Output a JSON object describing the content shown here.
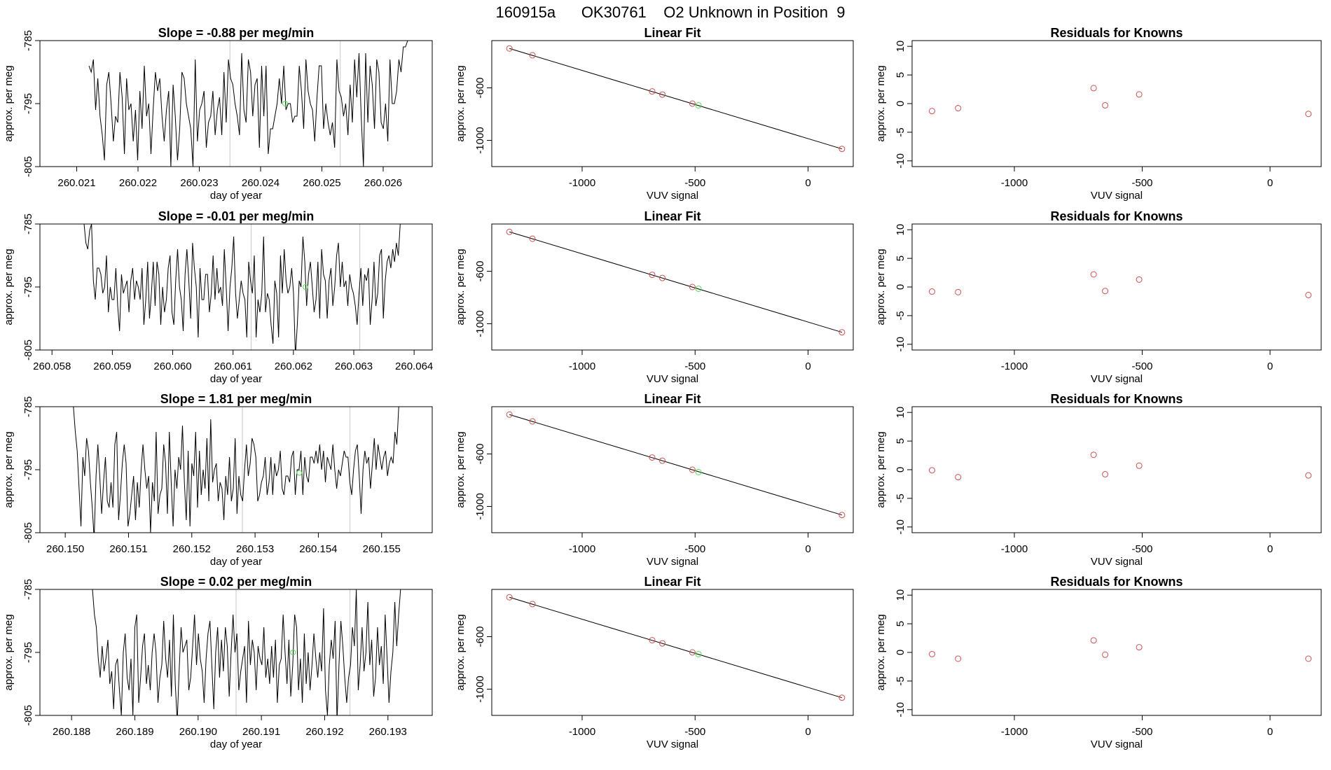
{
  "page_title": "160915a      OK30761    O2 Unknown in Position  9",
  "colors": {
    "line": "#000000",
    "known_point": "#cd4f4f",
    "unknown_point": "#55dd55",
    "vline": "#c8c8c8",
    "axis": "#000000"
  },
  "chart_data": [
    {
      "type": "line",
      "row": 0,
      "title": "Slope =  -0.88  per meg/min",
      "xlabel": "day of year",
      "ylabel": "approx. per meg",
      "xlim": [
        260.0204,
        260.0268
      ],
      "ylim": [
        -805,
        -785
      ],
      "xticks": [
        "260.021",
        "260.022",
        "260.023",
        "260.024",
        "260.025",
        "260.026"
      ],
      "yticks": [
        "-805",
        "-795",
        "-785"
      ],
      "start": 260.0212,
      "end": 260.0264,
      "vlines": [
        260.0235,
        260.0253
      ],
      "unknown_point": {
        "x": 260.0244,
        "y": -795
      },
      "series": [
        -789,
        -790,
        -788,
        -796,
        -791,
        -797,
        -800,
        -804,
        -792,
        -790,
        -795,
        -801,
        -797,
        -798,
        -790,
        -794,
        -803,
        -791,
        -796,
        -795,
        -801,
        -796,
        -804,
        -793,
        -799,
        -789,
        -797,
        -795,
        -803,
        -796,
        -790,
        -793,
        -791,
        -797,
        -801,
        -796,
        -793,
        -805,
        -792,
        -797,
        -804,
        -799,
        -790,
        -791,
        -795,
        -797,
        -799,
        -805,
        -788,
        -801,
        -796,
        -795,
        -793,
        -802,
        -798,
        -797,
        -793,
        -800,
        -796,
        -794,
        -800,
        -790,
        -798,
        -788,
        -791,
        -792,
        -795,
        -797,
        -800,
        -787,
        -796,
        -798,
        -788,
        -790,
        -797,
        -792,
        -791,
        -802,
        -789,
        -797,
        -789,
        -803,
        -799,
        -799,
        -797,
        -795,
        -791,
        -795,
        -789,
        -796,
        -795,
        -795,
        -798,
        -797,
        -797,
        -789,
        -793,
        -799,
        -788,
        -793,
        -795,
        -796,
        -801,
        -794,
        -789,
        -789,
        -799,
        -795,
        -798,
        -800,
        -798,
        -802,
        -788,
        -793,
        -794,
        -797,
        -795,
        -800,
        -792,
        -798,
        -788,
        -794,
        -787,
        -797,
        -805,
        -787,
        -798,
        -789,
        -792,
        -799,
        -788,
        -790,
        -798,
        -799,
        -795,
        -801,
        -788,
        -795,
        -795,
        -793,
        -788,
        -790,
        -786,
        -786,
        -785
      ]
    },
    {
      "type": "scatter",
      "row": 0,
      "title": "Linear Fit",
      "xlabel": "VUV signal",
      "ylabel": "approx. per meg",
      "xlim": [
        -1400,
        200
      ],
      "ylim": [
        -1200,
        -240
      ],
      "xticks": [
        -1000,
        -500,
        0
      ],
      "yticks": [
        -1000,
        -600
      ],
      "known": [
        [
          -1322,
          -300
        ],
        [
          -1220,
          -352
        ],
        [
          -690,
          -627
        ],
        [
          -645,
          -651
        ],
        [
          -512,
          -720
        ],
        [
          150,
          -1065
        ]
      ],
      "unknown": [
        [
          -485,
          -733
        ]
      ],
      "fit_line": [
        [
          -1322,
          -300
        ],
        [
          150,
          -1065
        ]
      ]
    },
    {
      "type": "scatter",
      "row": 0,
      "title": "Residuals for Knowns",
      "xlabel": "VUV signal",
      "ylabel": "approx. per meg",
      "xlim": [
        -1400,
        200
      ],
      "ylim": [
        -11,
        11
      ],
      "xticks": [
        -1000,
        -500,
        0
      ],
      "yticks": [
        -10,
        -5,
        0,
        5,
        10
      ],
      "known": [
        [
          -1322,
          -1.3
        ],
        [
          -1220,
          -0.8
        ],
        [
          -690,
          2.7
        ],
        [
          -645,
          -0.3
        ],
        [
          -512,
          1.6
        ],
        [
          150,
          -1.8
        ]
      ]
    },
    {
      "type": "line",
      "row": 1,
      "title": "Slope =  -0.01  per meg/min",
      "xlabel": "day of year",
      "ylabel": "approx. per meg",
      "xlim": [
        260.0578,
        260.0643
      ],
      "ylim": [
        -805,
        -785
      ],
      "xticks": [
        "260.058",
        "260.059",
        "260.060",
        "260.061",
        "260.062",
        "260.063",
        "260.064"
      ],
      "yticks": [
        "-805",
        "-795",
        "-785"
      ],
      "start": 260.0585,
      "end": 260.0638,
      "vlines": [
        260.0613,
        260.0631
      ],
      "unknown_point": {
        "x": 260.0622,
        "y": -795
      },
      "series": [
        -785,
        -785,
        -788,
        -789,
        -786,
        -785,
        -794,
        -797,
        -792,
        -792,
        -793,
        -796,
        -795,
        -790,
        -799,
        -795,
        -797,
        -797,
        -792,
        -798,
        -802,
        -793,
        -796,
        -795,
        -794,
        -799,
        -794,
        -792,
        -797,
        -794,
        -795,
        -797,
        -792,
        -801,
        -797,
        -791,
        -800,
        -796,
        -791,
        -798,
        -791,
        -793,
        -801,
        -795,
        -799,
        -797,
        -792,
        -790,
        -799,
        -801,
        -794,
        -789,
        -795,
        -797,
        -802,
        -793,
        -789,
        -794,
        -800,
        -788,
        -792,
        -795,
        -803,
        -792,
        -797,
        -797,
        -793,
        -793,
        -799,
        -796,
        -790,
        -797,
        -792,
        -796,
        -795,
        -798,
        -789,
        -795,
        -802,
        -795,
        -792,
        -787,
        -796,
        -800,
        -797,
        -794,
        -796,
        -797,
        -803,
        -791,
        -794,
        -796,
        -790,
        -803,
        -797,
        -799,
        -796,
        -787,
        -799,
        -796,
        -797,
        -801,
        -804,
        -794,
        -796,
        -803,
        -790,
        -796,
        -789,
        -794,
        -796,
        -795,
        -792,
        -796,
        -806,
        -801,
        -794,
        -795,
        -787,
        -791,
        -798,
        -793,
        -791,
        -795,
        -799,
        -797,
        -791,
        -800,
        -789,
        -793,
        -794,
        -800,
        -794,
        -792,
        -798,
        -795,
        -790,
        -788,
        -795,
        -791,
        -795,
        -794,
        -798,
        -793,
        -795,
        -796,
        -798,
        -801,
        -796,
        -792,
        -798,
        -793,
        -794,
        -792,
        -801,
        -797,
        -791,
        -798,
        -796,
        -790,
        -789,
        -800,
        -794,
        -791,
        -790,
        -792,
        -789,
        -791,
        -788,
        -790,
        -785,
        -785
      ]
    },
    {
      "type": "scatter",
      "row": 1,
      "title": "Linear Fit",
      "xlabel": "VUV signal",
      "ylabel": "approx. per meg",
      "xlim": [
        -1400,
        200
      ],
      "ylim": [
        -1200,
        -240
      ],
      "xticks": [
        -1000,
        -500,
        0
      ],
      "yticks": [
        -1000,
        -600
      ],
      "known": [
        [
          -1322,
          -300
        ],
        [
          -1220,
          -352
        ],
        [
          -690,
          -627
        ],
        [
          -645,
          -651
        ],
        [
          -512,
          -720
        ],
        [
          150,
          -1065
        ]
      ],
      "unknown": [
        [
          -485,
          -733
        ]
      ],
      "fit_line": [
        [
          -1322,
          -300
        ],
        [
          150,
          -1065
        ]
      ]
    },
    {
      "type": "scatter",
      "row": 1,
      "title": "Residuals for Knowns",
      "xlabel": "VUV signal",
      "ylabel": "approx. per meg",
      "xlim": [
        -1400,
        200
      ],
      "ylim": [
        -11,
        11
      ],
      "xticks": [
        -1000,
        -500,
        0
      ],
      "yticks": [
        -10,
        -5,
        0,
        5,
        10
      ],
      "known": [
        [
          -1322,
          -0.8
        ],
        [
          -1220,
          -0.9
        ],
        [
          -690,
          2.2
        ],
        [
          -645,
          -0.7
        ],
        [
          -512,
          1.3
        ],
        [
          150,
          -1.4
        ]
      ]
    },
    {
      "type": "line",
      "row": 2,
      "title": "Slope =  1.81  per meg/min",
      "xlabel": "day of year",
      "ylabel": "approx. per meg",
      "xlim": [
        260.1496,
        260.1558
      ],
      "ylim": [
        -805,
        -785
      ],
      "xticks": [
        "260.150",
        "260.151",
        "260.152",
        "260.153",
        "260.154",
        "260.155"
      ],
      "yticks": [
        "-805",
        "-795",
        "-785"
      ],
      "start": 260.1501,
      "end": 260.1553,
      "vlines": [
        260.1528,
        260.1545
      ],
      "unknown_point": {
        "x": 260.1537,
        "y": -795.5
      },
      "series": [
        -785,
        -785,
        -789,
        -792,
        -798,
        -804,
        -793,
        -796,
        -790,
        -792,
        -797,
        -801,
        -806,
        -796,
        -791,
        -796,
        -802,
        -797,
        -793,
        -800,
        -801,
        -797,
        -801,
        -791,
        -789,
        -803,
        -799,
        -794,
        -791,
        -794,
        -804,
        -802,
        -799,
        -796,
        -803,
        -797,
        -801,
        -795,
        -791,
        -795,
        -798,
        -796,
        -805,
        -797,
        -800,
        -789,
        -802,
        -799,
        -798,
        -791,
        -794,
        -802,
        -789,
        -797,
        -804,
        -795,
        -798,
        -793,
        -795,
        -788,
        -797,
        -803,
        -792,
        -804,
        -794,
        -796,
        -789,
        -801,
        -792,
        -799,
        -795,
        -798,
        -790,
        -800,
        -787,
        -797,
        -795,
        -794,
        -800,
        -797,
        -798,
        -803,
        -796,
        -799,
        -793,
        -800,
        -798,
        -790,
        -802,
        -796,
        -799,
        -800,
        -795,
        -791,
        -796,
        -794,
        -790,
        -791,
        -793,
        -800,
        -799,
        -797,
        -796,
        -793,
        -799,
        -797,
        -793,
        -799,
        -794,
        -796,
        -795,
        -792,
        -798,
        -799,
        -796,
        -796,
        -797,
        -793,
        -792,
        -799,
        -795,
        -795,
        -792,
        -799,
        -793,
        -796,
        -797,
        -793,
        -793,
        -794,
        -792,
        -794,
        -791,
        -795,
        -792,
        -797,
        -793,
        -794,
        -795,
        -791,
        -795,
        -798,
        -795,
        -796,
        -794,
        -792,
        -793,
        -793,
        -797,
        -799,
        -795,
        -792,
        -791,
        -796,
        -802,
        -795,
        -792,
        -794,
        -793,
        -798,
        -794,
        -790,
        -795,
        -791,
        -793,
        -795,
        -793,
        -792,
        -796,
        -794,
        -793,
        -794,
        -789,
        -791,
        -785,
        -785
      ]
    },
    {
      "type": "scatter",
      "row": 2,
      "title": "Linear Fit",
      "xlabel": "VUV signal",
      "ylabel": "approx. per meg",
      "xlim": [
        -1400,
        200
      ],
      "ylim": [
        -1200,
        -240
      ],
      "xticks": [
        -1000,
        -500,
        0
      ],
      "yticks": [
        -1000,
        -600
      ],
      "known": [
        [
          -1322,
          -300
        ],
        [
          -1220,
          -352
        ],
        [
          -690,
          -627
        ],
        [
          -645,
          -651
        ],
        [
          -512,
          -720
        ],
        [
          150,
          -1065
        ]
      ],
      "unknown": [
        [
          -485,
          -738
        ]
      ],
      "fit_line": [
        [
          -1322,
          -300
        ],
        [
          150,
          -1065
        ]
      ]
    },
    {
      "type": "scatter",
      "row": 2,
      "title": "Residuals for Knowns",
      "xlabel": "VUV signal",
      "ylabel": "approx. per meg",
      "xlim": [
        -1400,
        200
      ],
      "ylim": [
        -11,
        11
      ],
      "xticks": [
        -1000,
        -500,
        0
      ],
      "yticks": [
        -10,
        -5,
        0,
        5,
        10
      ],
      "known": [
        [
          -1322,
          -0.1
        ],
        [
          -1220,
          -1.3
        ],
        [
          -690,
          2.6
        ],
        [
          -645,
          -0.8
        ],
        [
          -512,
          0.7
        ],
        [
          150,
          -1.0
        ]
      ]
    },
    {
      "type": "line",
      "row": 3,
      "title": "Slope =  0.02  per meg/min",
      "xlabel": "day of year",
      "ylabel": "approx. per meg",
      "xlim": [
        260.1875,
        260.1937
      ],
      "ylim": [
        -805,
        -785
      ],
      "xticks": [
        "260.188",
        "260.189",
        "260.190",
        "260.191",
        "260.192",
        "260.193"
      ],
      "yticks": [
        "-805",
        "-795",
        "-785"
      ],
      "start": 260.1883,
      "end": 260.1932,
      "vlines": [
        260.1906,
        260.1924
      ],
      "unknown_point": {
        "x": 260.1915,
        "y": -795
      },
      "series": [
        -785,
        -785,
        -789,
        -791,
        -796,
        -799,
        -794,
        -798,
        -796,
        -793,
        -800,
        -798,
        -804,
        -797,
        -796,
        -801,
        -805,
        -795,
        -792,
        -799,
        -801,
        -796,
        -805,
        -791,
        -789,
        -803,
        -799,
        -794,
        -792,
        -800,
        -797,
        -801,
        -795,
        -792,
        -795,
        -803,
        -799,
        -797,
        -790,
        -796,
        -799,
        -793,
        -802,
        -789,
        -800,
        -806,
        -798,
        -791,
        -795,
        -794,
        -793,
        -801,
        -799,
        -794,
        -789,
        -797,
        -792,
        -796,
        -798,
        -803,
        -796,
        -792,
        -790,
        -797,
        -804,
        -795,
        -791,
        -799,
        -793,
        -798,
        -791,
        -794,
        -802,
        -795,
        -789,
        -795,
        -792,
        -801,
        -798,
        -796,
        -794,
        -803,
        -790,
        -797,
        -793,
        -795,
        -801,
        -794,
        -796,
        -797,
        -791,
        -799,
        -796,
        -800,
        -794,
        -799,
        -793,
        -803,
        -797,
        -796,
        -789,
        -795,
        -800,
        -793,
        -802,
        -797,
        -789,
        -791,
        -801,
        -796,
        -803,
        -792,
        -800,
        -795,
        -801,
        -797,
        -792,
        -796,
        -799,
        -795,
        -798,
        -788,
        -801,
        -805,
        -797,
        -793,
        -796,
        -790,
        -806,
        -797,
        -790,
        -794,
        -799,
        -803,
        -799,
        -797,
        -791,
        -794,
        -785,
        -801,
        -797,
        -791,
        -798,
        -795,
        -787,
        -797,
        -793,
        -802,
        -799,
        -791,
        -797,
        -794,
        -800,
        -789,
        -796,
        -803,
        -798,
        -795,
        -787,
        -794,
        -789,
        -785
      ]
    },
    {
      "type": "scatter",
      "row": 3,
      "title": "Linear Fit",
      "xlabel": "VUV signal",
      "ylabel": "approx. per meg",
      "xlim": [
        -1400,
        200
      ],
      "ylim": [
        -1200,
        -240
      ],
      "xticks": [
        -1000,
        -500,
        0
      ],
      "yticks": [
        -1000,
        -600
      ],
      "known": [
        [
          -1322,
          -300
        ],
        [
          -1220,
          -352
        ],
        [
          -690,
          -627
        ],
        [
          -645,
          -651
        ],
        [
          -512,
          -720
        ],
        [
          150,
          -1065
        ]
      ],
      "unknown": [
        [
          -485,
          -733
        ]
      ],
      "fit_line": [
        [
          -1322,
          -300
        ],
        [
          150,
          -1065
        ]
      ]
    },
    {
      "type": "scatter",
      "row": 3,
      "title": "Residuals for Knowns",
      "xlabel": "VUV signal",
      "ylabel": "approx. per meg",
      "xlim": [
        -1400,
        200
      ],
      "ylim": [
        -11,
        11
      ],
      "xticks": [
        -1000,
        -500,
        0
      ],
      "yticks": [
        -10,
        -5,
        0,
        5,
        10
      ],
      "known": [
        [
          -1322,
          -0.3
        ],
        [
          -1220,
          -1.1
        ],
        [
          -690,
          2.1
        ],
        [
          -645,
          -0.4
        ],
        [
          -512,
          0.9
        ],
        [
          150,
          -1.1
        ]
      ]
    }
  ]
}
